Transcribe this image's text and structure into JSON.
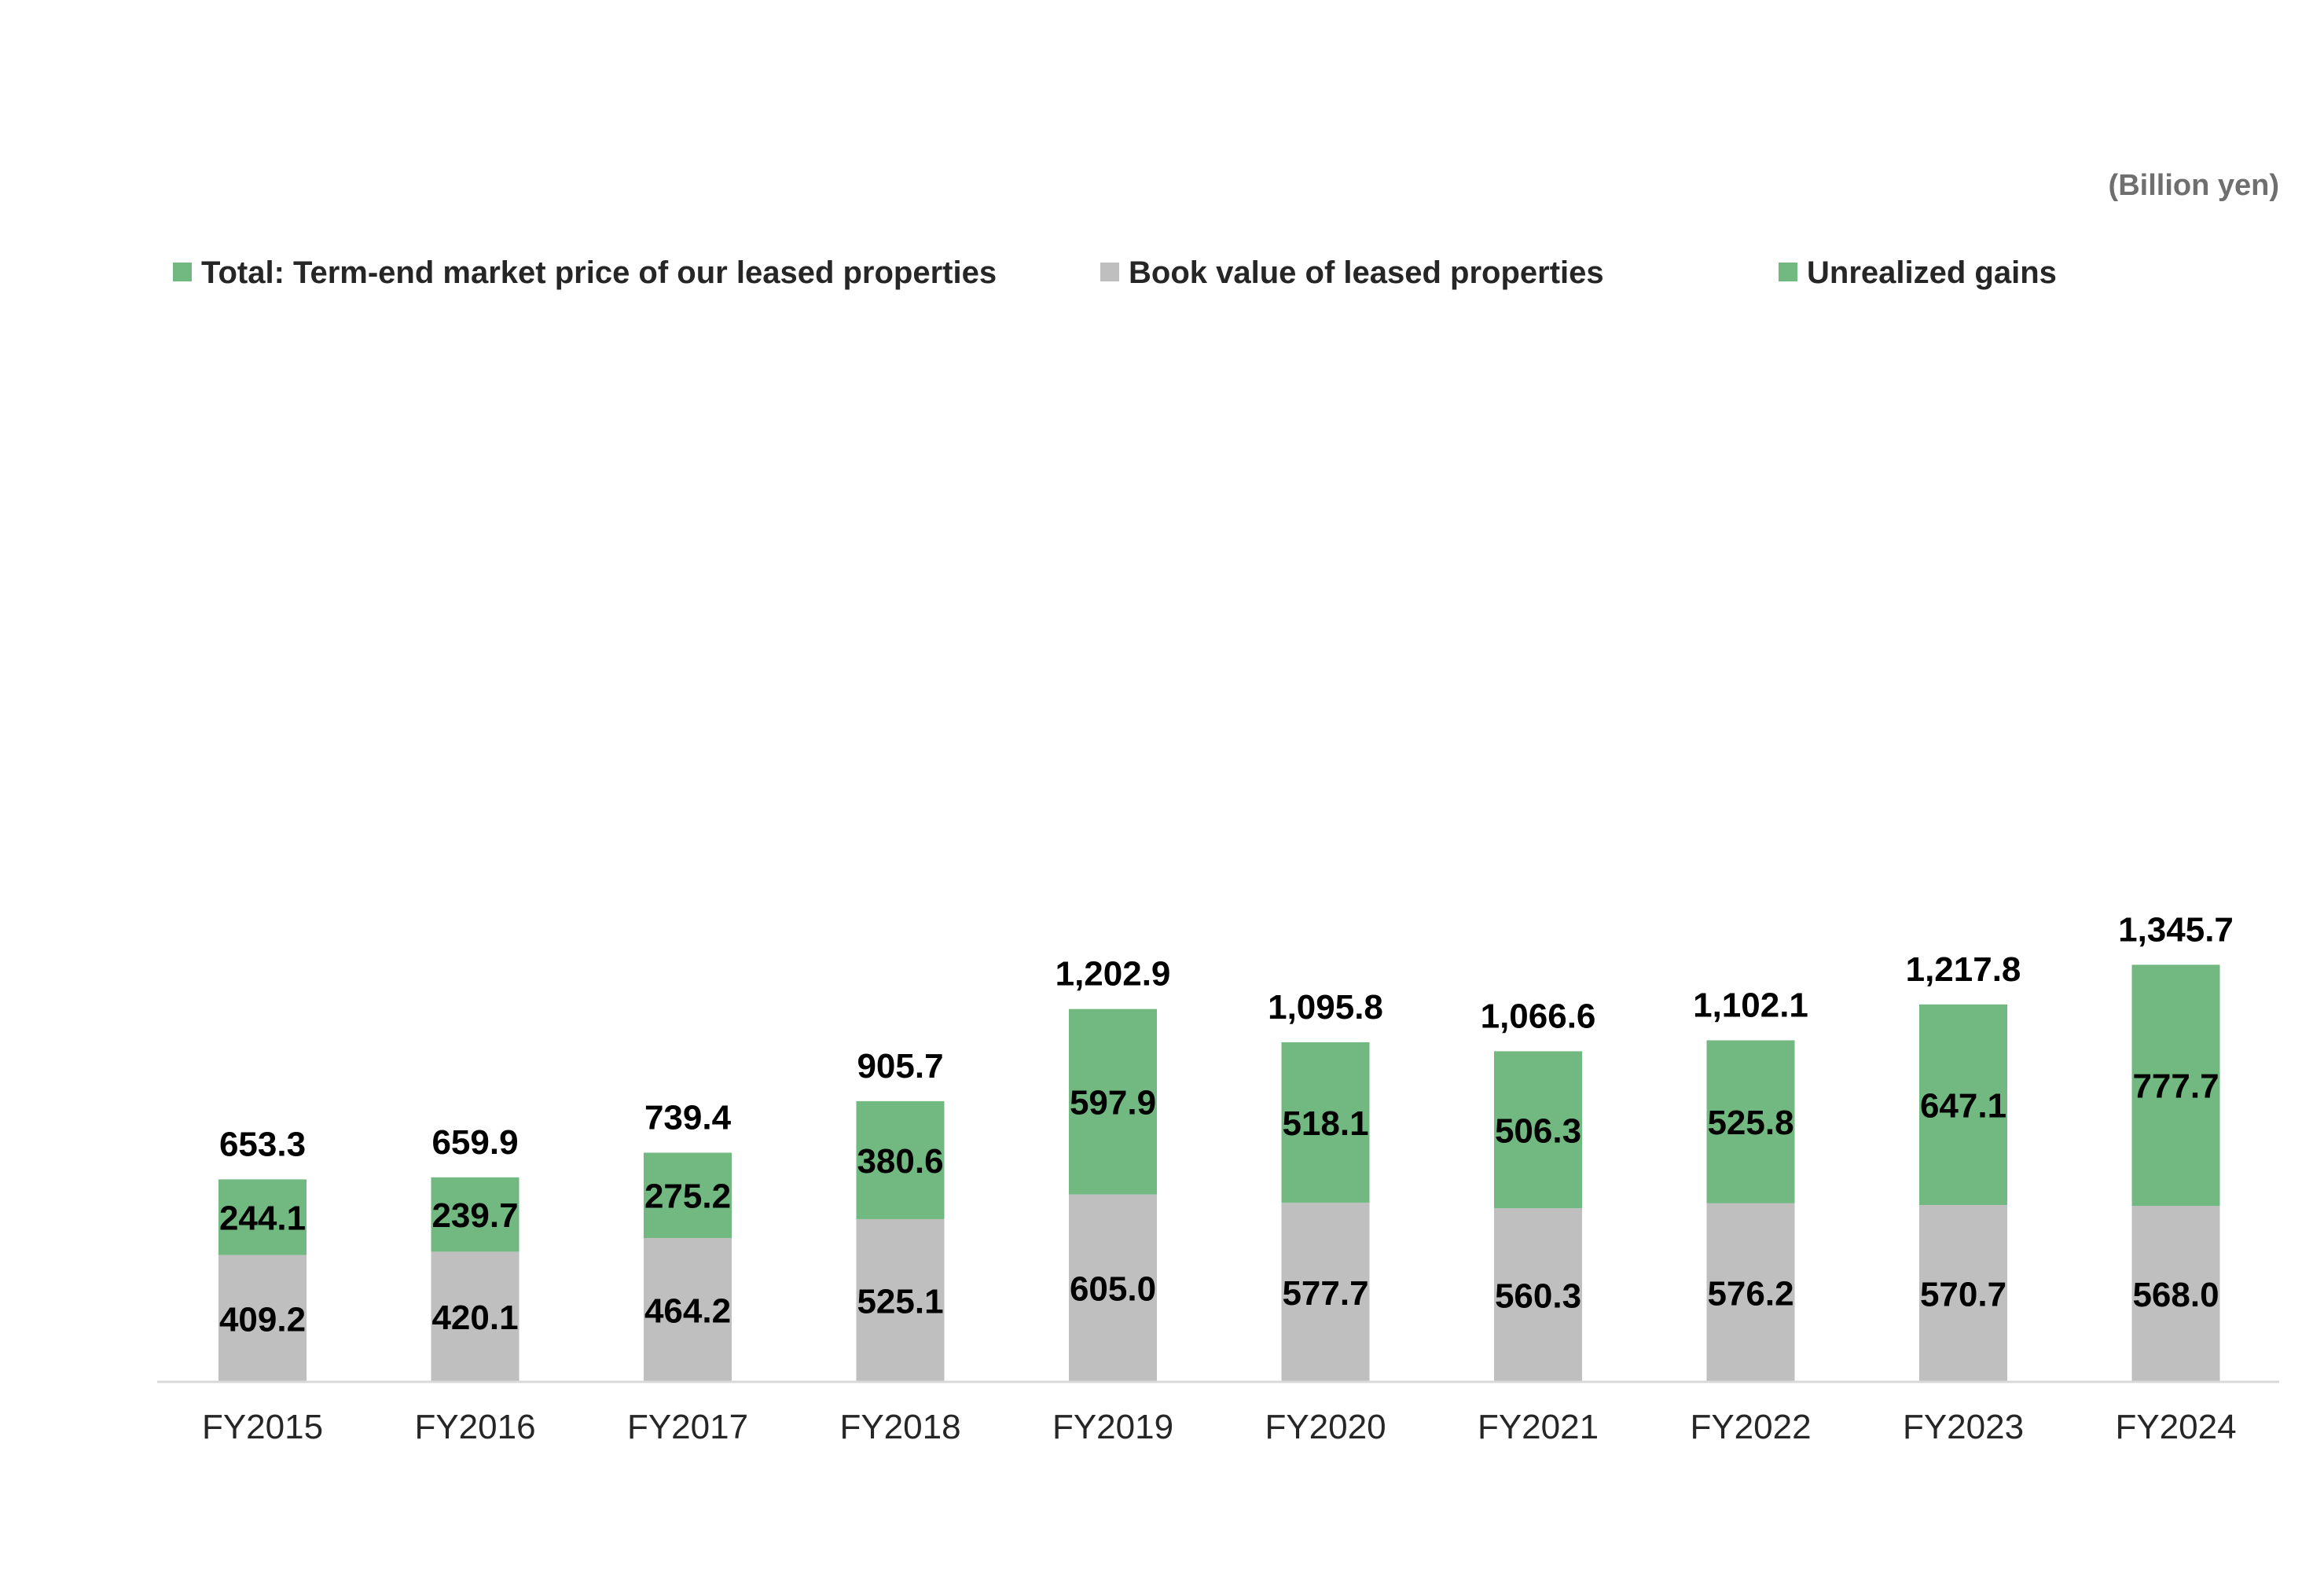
{
  "chart_data": {
    "type": "bar",
    "stacked": true,
    "unit": "(Billion yen)",
    "legend_position": "top-left",
    "categories": [
      "FY2015",
      "FY2016",
      "FY2017",
      "FY2018",
      "FY2019",
      "FY2020",
      "FY2021",
      "FY2022",
      "FY2023",
      "FY2024"
    ],
    "legend": [
      {
        "name": "Total: Term-end market price of our leased properties",
        "color": "#71b881"
      },
      {
        "name": "Book value of leased properties",
        "color": "#bfbfbf"
      },
      {
        "name": "Unrealized gains",
        "color": "#71b881"
      }
    ],
    "series": [
      {
        "name": "Book value of leased properties",
        "color": "#bfbfbf",
        "values": [
          409.2,
          420.1,
          464.2,
          525.1,
          605.0,
          577.7,
          560.3,
          576.2,
          570.7,
          568.0
        ],
        "labels": [
          "409.2",
          "420.1",
          "464.2",
          "525.1",
          "605.0",
          "577.7",
          "560.3",
          "576.2",
          "570.7",
          "568.0"
        ]
      },
      {
        "name": "Unrealized gains",
        "color": "#71b881",
        "values": [
          244.1,
          239.7,
          275.2,
          380.6,
          597.9,
          518.1,
          506.3,
          525.8,
          647.1,
          777.7
        ],
        "labels": [
          "244.1",
          "239.7",
          "275.2",
          "380.6",
          "597.9",
          "518.1",
          "506.3",
          "525.8",
          "647.1",
          "777.7"
        ]
      }
    ],
    "totals": {
      "name": "Total: Term-end market price of our leased properties",
      "values": [
        653.3,
        659.9,
        739.4,
        905.7,
        1202.9,
        1095.8,
        1066.6,
        1102.1,
        1217.8,
        1345.7
      ],
      "labels": [
        "653.3",
        "659.9",
        "739.4",
        "905.7",
        "1,202.9",
        "1,095.8",
        "1,066.6",
        "1,102.1",
        "1,217.8",
        "1,345.7"
      ]
    },
    "ylim": [
      0,
      1500
    ],
    "grid": false,
    "title": "",
    "xlabel": "",
    "ylabel": ""
  }
}
